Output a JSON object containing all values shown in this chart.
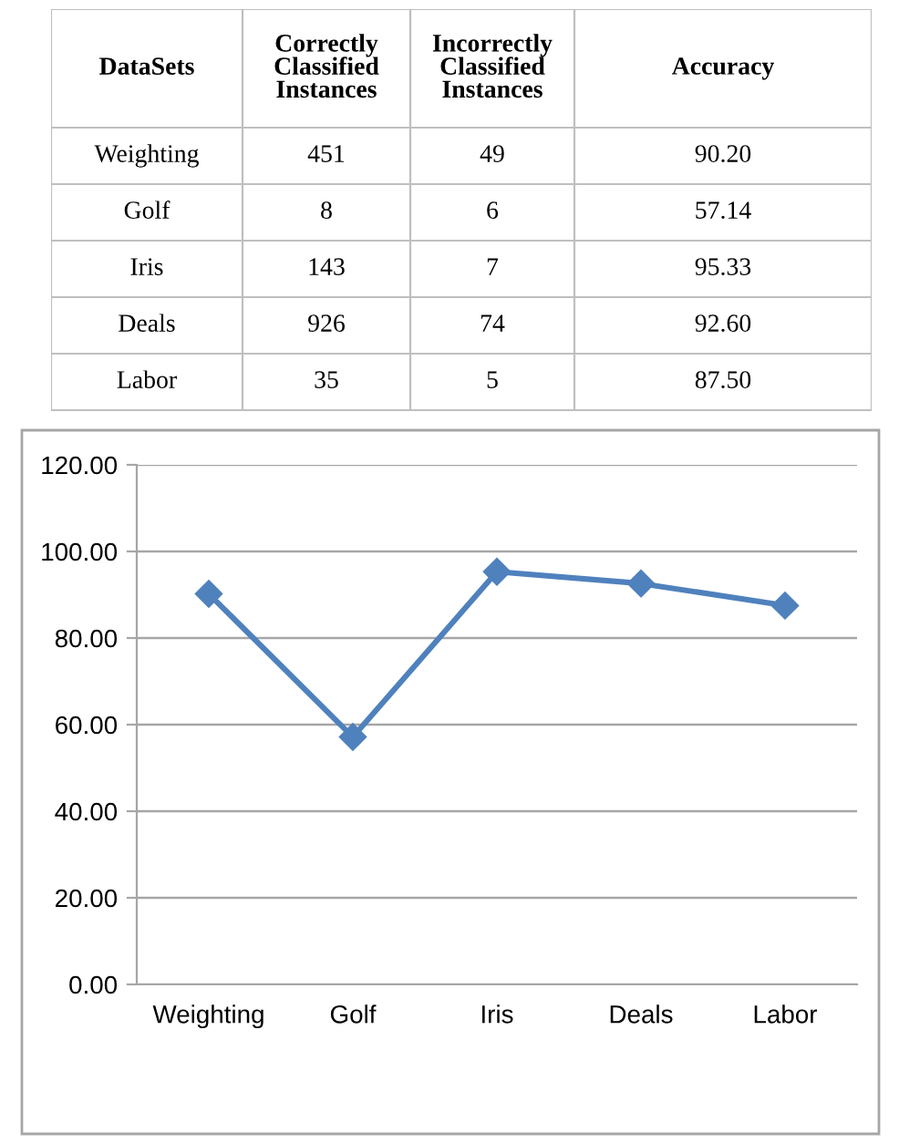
{
  "chart_data": [
    {
      "type": "other",
      "categories": [
        "Weighting",
        "Golf",
        "Iris",
        "Deals",
        "Labor"
      ],
      "xlabel": "DataSets",
      "data_labels": true,
      "series": [
        {
          "name": "Correctly Classified Instances",
          "value_labels": [
            "451",
            "8",
            "143",
            "926",
            "35"
          ],
          "values": [
            451,
            8,
            143,
            926,
            35
          ]
        },
        {
          "name": "Incorrectly Classified Instances",
          "value_labels": [
            "49",
            "6",
            "7",
            "74",
            "5"
          ],
          "values": [
            49,
            6,
            7,
            74,
            5
          ]
        },
        {
          "name": "Accuracy",
          "value_labels": [
            "90.20",
            "57.14",
            "95.33",
            "92.60",
            "87.50"
          ],
          "values": [
            90.2,
            57.14,
            95.33,
            92.6,
            87.5
          ]
        }
      ]
    },
    {
      "type": "line",
      "categories": [
        "Weighting",
        "Golf",
        "Iris",
        "Deals",
        "Labor"
      ],
      "series": [
        {
          "color": "#4f81bd",
          "values": [
            90.2,
            57.14,
            95.33,
            92.6,
            87.5
          ]
        }
      ],
      "ylim": [
        0,
        120
      ],
      "yticks": [
        {
          "value": 0,
          "label": "0.00"
        },
        {
          "value": 20,
          "label": "20.00"
        },
        {
          "value": 40,
          "label": "40.00"
        },
        {
          "value": 60,
          "label": "60.00"
        },
        {
          "value": 80,
          "label": "80.00"
        },
        {
          "value": 100,
          "label": "100.00"
        },
        {
          "value": 120,
          "label": "120.00"
        }
      ],
      "grid": "y",
      "marker": "diamond",
      "line_style": "solid",
      "legend": false
    }
  ]
}
